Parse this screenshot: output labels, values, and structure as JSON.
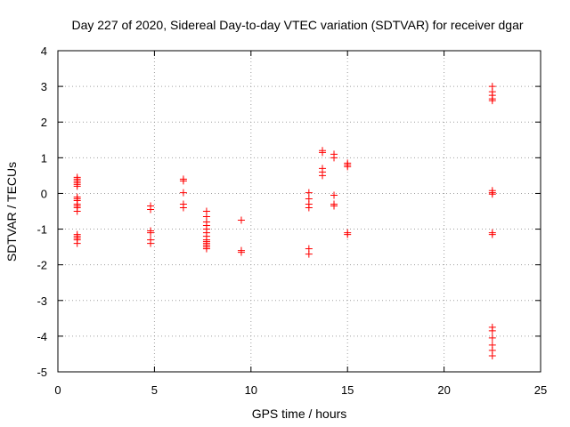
{
  "chart_data": {
    "type": "scatter",
    "title": "Day 227 of 2020, Sidereal Day-to-day VTEC variation (SDTVAR) for receiver dgar",
    "xlabel": "GPS time / hours",
    "ylabel": "SDTVAR / TECUs",
    "xlim": [
      0,
      25
    ],
    "ylim": [
      -5,
      4
    ],
    "xticks": [
      "0",
      "5",
      "10",
      "15",
      "20",
      "25"
    ],
    "yticks": [
      "-5",
      "-4",
      "-3",
      "-2",
      "-1",
      "0",
      "1",
      "2",
      "3",
      "4"
    ],
    "grid": true,
    "marker": "plus",
    "color": "#ff0000",
    "series": [
      {
        "name": "SDTVAR",
        "points": [
          [
            1.0,
            0.45
          ],
          [
            1.0,
            0.4
          ],
          [
            1.0,
            0.35
          ],
          [
            1.0,
            0.3
          ],
          [
            1.0,
            0.25
          ],
          [
            1.0,
            0.2
          ],
          [
            1.0,
            -0.1
          ],
          [
            1.0,
            -0.15
          ],
          [
            1.0,
            -0.2
          ],
          [
            1.0,
            -0.3
          ],
          [
            1.0,
            -0.35
          ],
          [
            1.0,
            -0.4
          ],
          [
            1.0,
            -0.5
          ],
          [
            1.0,
            -1.15
          ],
          [
            1.0,
            -1.2
          ],
          [
            1.0,
            -1.25
          ],
          [
            1.0,
            -1.3
          ],
          [
            1.0,
            -1.4
          ],
          [
            4.8,
            -0.35
          ],
          [
            4.8,
            -0.45
          ],
          [
            4.8,
            -1.05
          ],
          [
            4.8,
            -1.1
          ],
          [
            4.8,
            -1.3
          ],
          [
            4.8,
            -1.4
          ],
          [
            6.5,
            0.4
          ],
          [
            6.5,
            0.35
          ],
          [
            6.5,
            0.02
          ],
          [
            6.5,
            -0.3
          ],
          [
            6.5,
            -0.4
          ],
          [
            7.7,
            -0.5
          ],
          [
            7.7,
            -0.65
          ],
          [
            7.7,
            -0.8
          ],
          [
            7.7,
            -0.9
          ],
          [
            7.7,
            -1.0
          ],
          [
            7.7,
            -1.1
          ],
          [
            7.7,
            -1.2
          ],
          [
            7.7,
            -1.3
          ],
          [
            7.7,
            -1.35
          ],
          [
            7.7,
            -1.4
          ],
          [
            7.7,
            -1.45
          ],
          [
            7.7,
            -1.5
          ],
          [
            7.7,
            -1.55
          ],
          [
            9.5,
            -0.75
          ],
          [
            9.5,
            -1.6
          ],
          [
            9.5,
            -1.65
          ],
          [
            13.0,
            0.02
          ],
          [
            13.0,
            -0.15
          ],
          [
            13.0,
            -0.3
          ],
          [
            13.0,
            -0.4
          ],
          [
            13.0,
            -1.55
          ],
          [
            13.0,
            -1.7
          ],
          [
            13.7,
            1.2
          ],
          [
            13.7,
            1.15
          ],
          [
            13.7,
            0.7
          ],
          [
            13.7,
            0.6
          ],
          [
            13.7,
            0.5
          ],
          [
            14.3,
            1.1
          ],
          [
            14.3,
            1.0
          ],
          [
            14.3,
            -0.05
          ],
          [
            14.3,
            -0.3
          ],
          [
            14.3,
            -0.35
          ],
          [
            15.0,
            0.85
          ],
          [
            15.0,
            0.8
          ],
          [
            15.0,
            0.75
          ],
          [
            15.0,
            -1.1
          ],
          [
            15.0,
            -1.15
          ],
          [
            22.5,
            3.0
          ],
          [
            22.5,
            2.85
          ],
          [
            22.5,
            2.75
          ],
          [
            22.5,
            2.65
          ],
          [
            22.5,
            2.6
          ],
          [
            22.5,
            0.08
          ],
          [
            22.5,
            0.02
          ],
          [
            22.5,
            -0.02
          ],
          [
            22.5,
            -1.1
          ],
          [
            22.5,
            -1.15
          ],
          [
            22.5,
            -3.75
          ],
          [
            22.5,
            -3.85
          ],
          [
            22.5,
            -4.05
          ],
          [
            22.5,
            -4.25
          ],
          [
            22.5,
            -4.4
          ],
          [
            22.5,
            -4.55
          ]
        ]
      }
    ]
  }
}
